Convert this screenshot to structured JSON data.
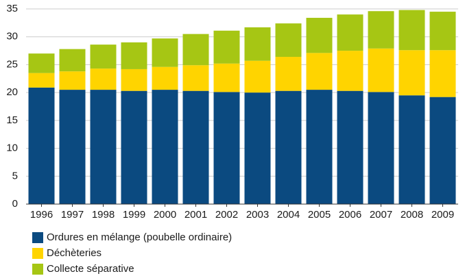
{
  "chart_data": {
    "type": "stacked_bar",
    "categories": [
      "1996",
      "1997",
      "1998",
      "1999",
      "2000",
      "2001",
      "2002",
      "2003",
      "2004",
      "2005",
      "2006",
      "2007",
      "2008",
      "2009"
    ],
    "series": [
      {
        "name": "Ordures en mélange (poubelle ordinaire)",
        "color": "#0b4a80",
        "values": [
          20.9,
          20.5,
          20.5,
          20.3,
          20.5,
          20.3,
          20.1,
          20.0,
          20.3,
          20.5,
          20.3,
          20.1,
          19.5,
          19.2
        ]
      },
      {
        "name": "Déchèteries",
        "color": "#ffd400",
        "values": [
          2.6,
          3.3,
          3.8,
          3.9,
          4.1,
          4.6,
          5.1,
          5.7,
          6.1,
          6.6,
          7.2,
          7.8,
          8.1,
          8.4
        ]
      },
      {
        "name": "Collecte séparative",
        "color": "#a6c614",
        "values": [
          3.5,
          4.0,
          4.3,
          4.8,
          5.1,
          5.6,
          5.9,
          6.0,
          6.0,
          6.3,
          6.5,
          6.7,
          7.2,
          6.9
        ]
      }
    ],
    "ylim": [
      0,
      35
    ],
    "yticks": [
      0,
      5,
      10,
      15,
      20,
      25,
      30,
      35
    ],
    "grid": true
  }
}
